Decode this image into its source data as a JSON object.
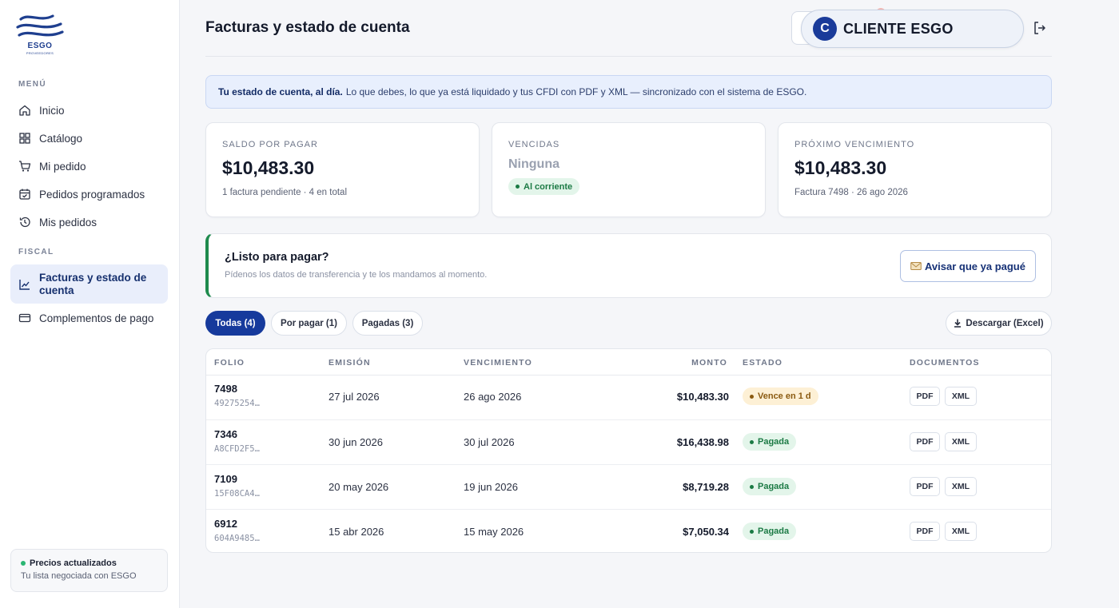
{
  "brand": {
    "name": "ESGO",
    "tagline": "PROVEEDORES",
    "color": "#1f3f8f"
  },
  "sidebar": {
    "menu_label": "MENÚ",
    "menu_items": [
      {
        "label": "Inicio",
        "icon": "home-icon"
      },
      {
        "label": "Catálogo",
        "icon": "grid-icon"
      },
      {
        "label": "Mi pedido",
        "icon": "cart-icon"
      },
      {
        "label": "Pedidos programados",
        "icon": "calendar-check-icon"
      },
      {
        "label": "Mis pedidos",
        "icon": "history-icon"
      }
    ],
    "fiscal_label": "FISCAL",
    "fiscal_items": [
      {
        "label": "Facturas y estado de cuenta",
        "icon": "chart-line-icon",
        "active": true
      },
      {
        "label": "Complementos de pago",
        "icon": "credit-card-icon"
      }
    ],
    "prices": {
      "title": "Precios actualizados",
      "subtitle": "Tu lista negociada con ESGO"
    }
  },
  "header": {
    "title": "Facturas y estado de cuenta",
    "client_initial": "C",
    "client_name": "CLIENTE ESGO",
    "logout_icon": "logout-icon"
  },
  "banner": {
    "bold": "Tu estado de cuenta, al día.",
    "text": "Lo que debes, lo que ya está liquidado y tus CFDI con PDF y XML — sincronizado con el sistema de ESGO."
  },
  "cards": {
    "balance": {
      "label": "SALDO POR PAGAR",
      "value": "$10,483.30",
      "sub": "1 factura pendiente · 4 en total"
    },
    "overdue": {
      "label": "VENCIDAS",
      "value": "Ninguna",
      "badge": "Al corriente"
    },
    "next": {
      "label": "PRÓXIMO VENCIMIENTO",
      "value": "$10,483.30",
      "sub": "Factura 7498 · 26 ago 2026"
    }
  },
  "pay": {
    "title": "¿Listo para pagar?",
    "subtitle": "Pídenos los datos de transferencia y te los mandamos al momento.",
    "button": "Avisar que ya pagué",
    "button_icon": "envelope-icon"
  },
  "filters": {
    "all": "Todas (4)",
    "pending": "Por pagar (1)",
    "paid": "Pagadas (3)",
    "download": "Descargar (Excel)"
  },
  "table": {
    "headers": {
      "folio": "FOLIO",
      "issued": "EMISIÓN",
      "due": "VENCIMIENTO",
      "amount": "MONTO",
      "status": "ESTADO",
      "docs": "DOCUMENTOS"
    },
    "doc_pdf": "PDF",
    "doc_xml": "XML",
    "rows": [
      {
        "folio": "7498",
        "uuid": "49275254…",
        "issued": "27 jul 2026",
        "due": "26 ago 2026",
        "amount": "$10,483.30",
        "status": "Vence en 1 d",
        "status_kind": "warn"
      },
      {
        "folio": "7346",
        "uuid": "A8CFD2F5…",
        "issued": "30 jun 2026",
        "due": "30 jul 2026",
        "amount": "$16,438.98",
        "status": "Pagada",
        "status_kind": "ok"
      },
      {
        "folio": "7109",
        "uuid": "15F08CA4…",
        "issued": "20 may 2026",
        "due": "19 jun 2026",
        "amount": "$8,719.28",
        "status": "Pagada",
        "status_kind": "ok"
      },
      {
        "folio": "6912",
        "uuid": "604A9485…",
        "issued": "15 abr 2026",
        "due": "15 may 2026",
        "amount": "$7,050.34",
        "status": "Pagada",
        "status_kind": "ok"
      }
    ]
  },
  "colors": {
    "primary": "#163a9c",
    "success": "#1b7a44",
    "warning": "#8a5a10",
    "accent_border": "#1e8a4d"
  }
}
